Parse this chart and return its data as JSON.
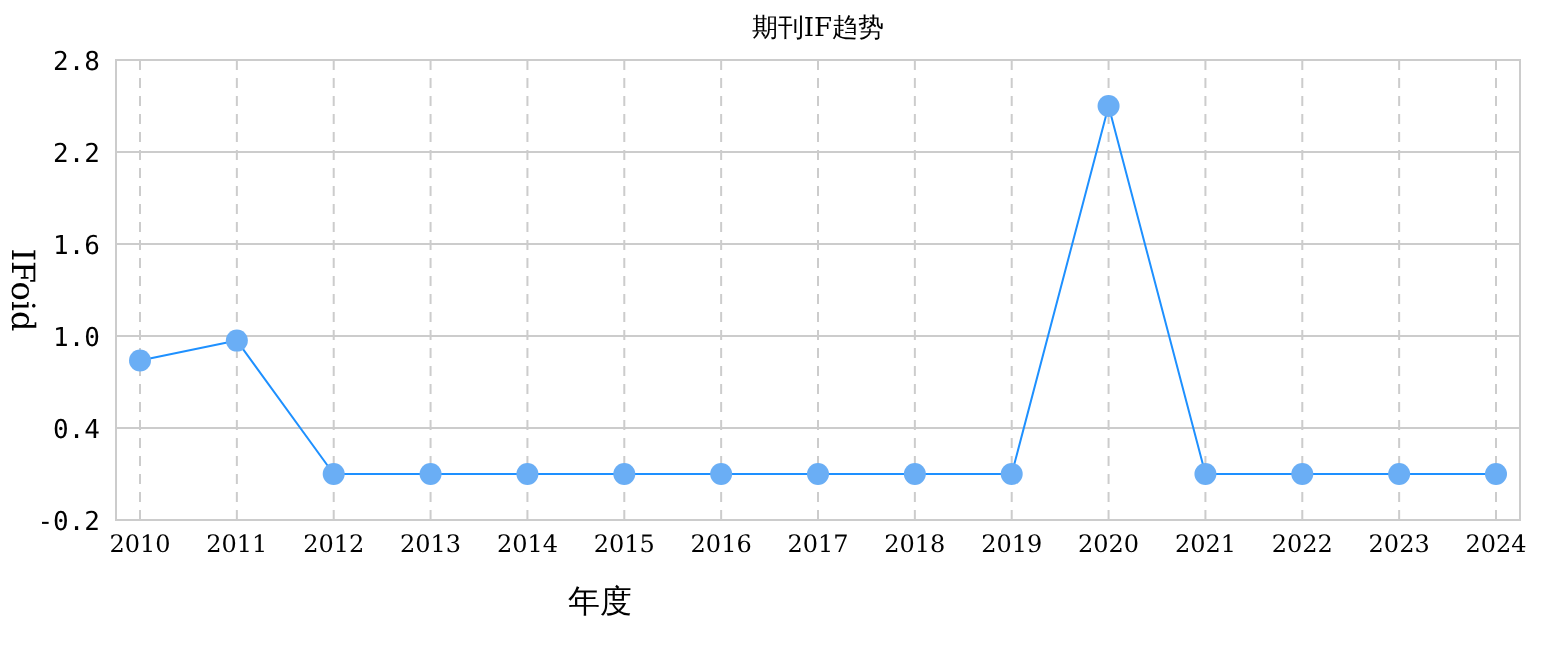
{
  "chart_data": {
    "type": "line",
    "title": "期刊IF趋势",
    "xlabel": "年度",
    "ylabel": "IFoid",
    "categories": [
      "2010",
      "2011",
      "2012",
      "2013",
      "2014",
      "2015",
      "2016",
      "2017",
      "2018",
      "2019",
      "2020",
      "2021",
      "2022",
      "2023",
      "2024"
    ],
    "series": [
      {
        "color": "#1e90ff",
        "values": [
          0.84,
          0.97,
          0.1,
          0.1,
          0.1,
          0.1,
          0.1,
          0.1,
          0.1,
          0.1,
          2.5,
          0.1,
          0.1,
          0.1,
          0.1
        ]
      }
    ],
    "ylim": [
      -0.2,
      2.8
    ],
    "yticks": [
      -0.2,
      0.4,
      {
        "value": 1,
        "label": "1.0"
      },
      1.6,
      2.2,
      2.8
    ],
    "grid": true,
    "marker": "circle",
    "line_style": "solid"
  }
}
